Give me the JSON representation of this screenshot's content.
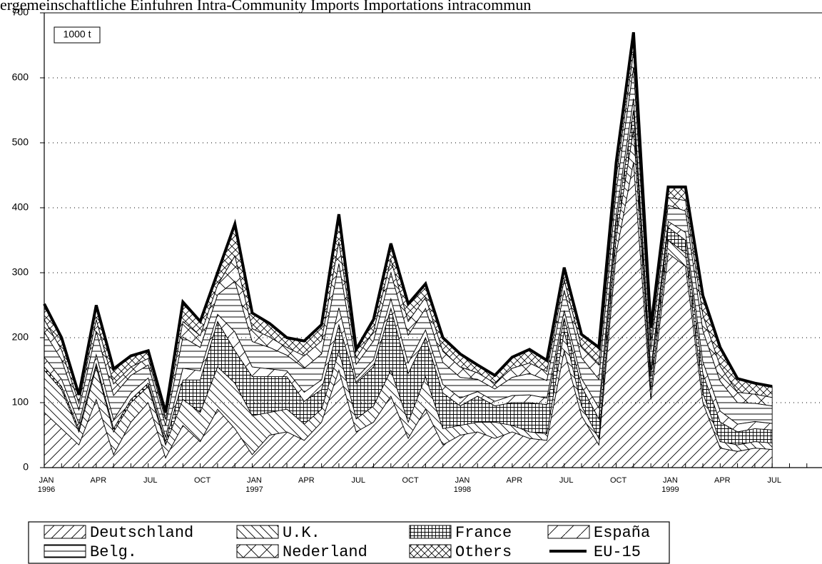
{
  "chart_data": {
    "type": "area",
    "title": "ergemeinschaftliche Einfuhren    Intra-Community Imports    Importations intracommun",
    "unit_label": "1000 t",
    "categories": [
      "JAN 1996",
      null,
      null,
      "APR",
      null,
      null,
      "JUL",
      null,
      null,
      "OCT",
      null,
      null,
      "JAN 1997",
      null,
      null,
      "APR",
      null,
      null,
      "JUL",
      null,
      null,
      "OCT",
      null,
      null,
      "JAN 1998",
      null,
      null,
      "APR",
      null,
      null,
      "JUL",
      null,
      null,
      "OCT",
      null,
      null,
      "JAN 1999",
      null,
      null,
      "APR",
      null,
      null,
      "JUL",
      null,
      null
    ],
    "ylim": [
      0,
      700
    ],
    "yticks": [
      0,
      100,
      200,
      300,
      400,
      500,
      600,
      700
    ],
    "grid": true,
    "stacked": true,
    "series": [
      {
        "name": "Deutschland",
        "color": "#000000",
        "hatch": "forward",
        "values": [
          85,
          60,
          35,
          105,
          20,
          70,
          100,
          15,
          65,
          40,
          90,
          60,
          20,
          50,
          55,
          42,
          70,
          150,
          55,
          70,
          110,
          45,
          90,
          35,
          50,
          55,
          45,
          55,
          45,
          42,
          180,
          80,
          35,
          330,
          470,
          105,
          330,
          310,
          100,
          30,
          25,
          30,
          28,
          null,
          null
        ]
      },
      {
        "name": "U.K.",
        "color": "#000000",
        "hatch": "back",
        "values": [
          65,
          60,
          20,
          50,
          35,
          30,
          25,
          20,
          40,
          45,
          65,
          70,
          60,
          35,
          35,
          25,
          20,
          30,
          20,
          25,
          40,
          25,
          50,
          25,
          15,
          15,
          25,
          10,
          10,
          10,
          30,
          15,
          10,
          25,
          50,
          15,
          20,
          20,
          15,
          10,
          10,
          10,
          10,
          null,
          null
        ]
      },
      {
        "name": "France",
        "color": "#000000",
        "hatch": "grid",
        "values": [
          5,
          5,
          5,
          5,
          5,
          5,
          5,
          5,
          30,
          50,
          70,
          50,
          60,
          55,
          50,
          35,
          30,
          40,
          55,
          60,
          95,
          75,
          60,
          55,
          30,
          40,
          25,
          35,
          45,
          45,
          20,
          30,
          30,
          20,
          30,
          20,
          20,
          20,
          30,
          30,
          20,
          20,
          20,
          null,
          null
        ]
      },
      {
        "name": "España",
        "color": "#000000",
        "hatch": "forward-wide",
        "values": [
          15,
          11,
          8,
          14,
          14,
          10,
          8,
          7,
          18,
          14,
          11,
          29,
          15,
          12,
          9,
          14,
          15,
          26,
          8,
          11,
          15,
          16,
          12,
          13,
          12,
          7,
          7,
          11,
          12,
          10,
          12,
          12,
          17,
          14,
          18,
          11,
          9,
          12,
          18,
          17,
          12,
          11,
          10,
          null,
          null
        ]
      },
      {
        "name": "Belg.",
        "color": "#000000",
        "hatch": "horizontal",
        "values": [
          39,
          30,
          21,
          36,
          37,
          27,
          20,
          18,
          48,
          36,
          30,
          78,
          39,
          33,
          24,
          37,
          40,
          68,
          21,
          29,
          40,
          43,
          33,
          34,
          32,
          19,
          19,
          28,
          33,
          27,
          31,
          32,
          44,
          38,
          48,
          30,
          25,
          33,
          48,
          46,
          33,
          28,
          27,
          null,
          null
        ]
      },
      {
        "name": "Nederland",
        "color": "#000000",
        "hatch": "cross",
        "values": [
          19,
          15,
          10,
          18,
          18,
          13,
          10,
          9,
          24,
          18,
          15,
          39,
          20,
          16,
          12,
          19,
          20,
          34,
          10,
          15,
          20,
          21,
          17,
          17,
          16,
          10,
          9,
          14,
          16,
          14,
          16,
          16,
          22,
          19,
          24,
          15,
          12,
          16,
          24,
          23,
          16,
          14,
          13,
          null,
          null
        ]
      },
      {
        "name": "Others",
        "color": "#000000",
        "hatch": "crosshatch",
        "values": [
          24,
          19,
          13,
          22,
          23,
          17,
          12,
          11,
          30,
          22,
          19,
          49,
          24,
          21,
          15,
          23,
          25,
          42,
          13,
          18,
          25,
          27,
          21,
          21,
          20,
          12,
          12,
          17,
          21,
          17,
          19,
          20,
          27,
          24,
          30,
          19,
          16,
          21,
          30,
          29,
          21,
          17,
          17,
          null,
          null
        ]
      },
      {
        "name": "EU-15",
        "color": "#000000",
        "type": "line",
        "values": [
          252,
          200,
          112,
          250,
          152,
          172,
          180,
          85,
          255,
          225,
          300,
          375,
          238,
          222,
          200,
          195,
          220,
          390,
          182,
          228,
          345,
          252,
          283,
          200,
          175,
          158,
          142,
          170,
          182,
          165,
          308,
          205,
          185,
          470,
          670,
          215,
          432,
          432,
          265,
          185,
          137,
          130,
          125,
          null,
          null
        ]
      }
    ]
  }
}
